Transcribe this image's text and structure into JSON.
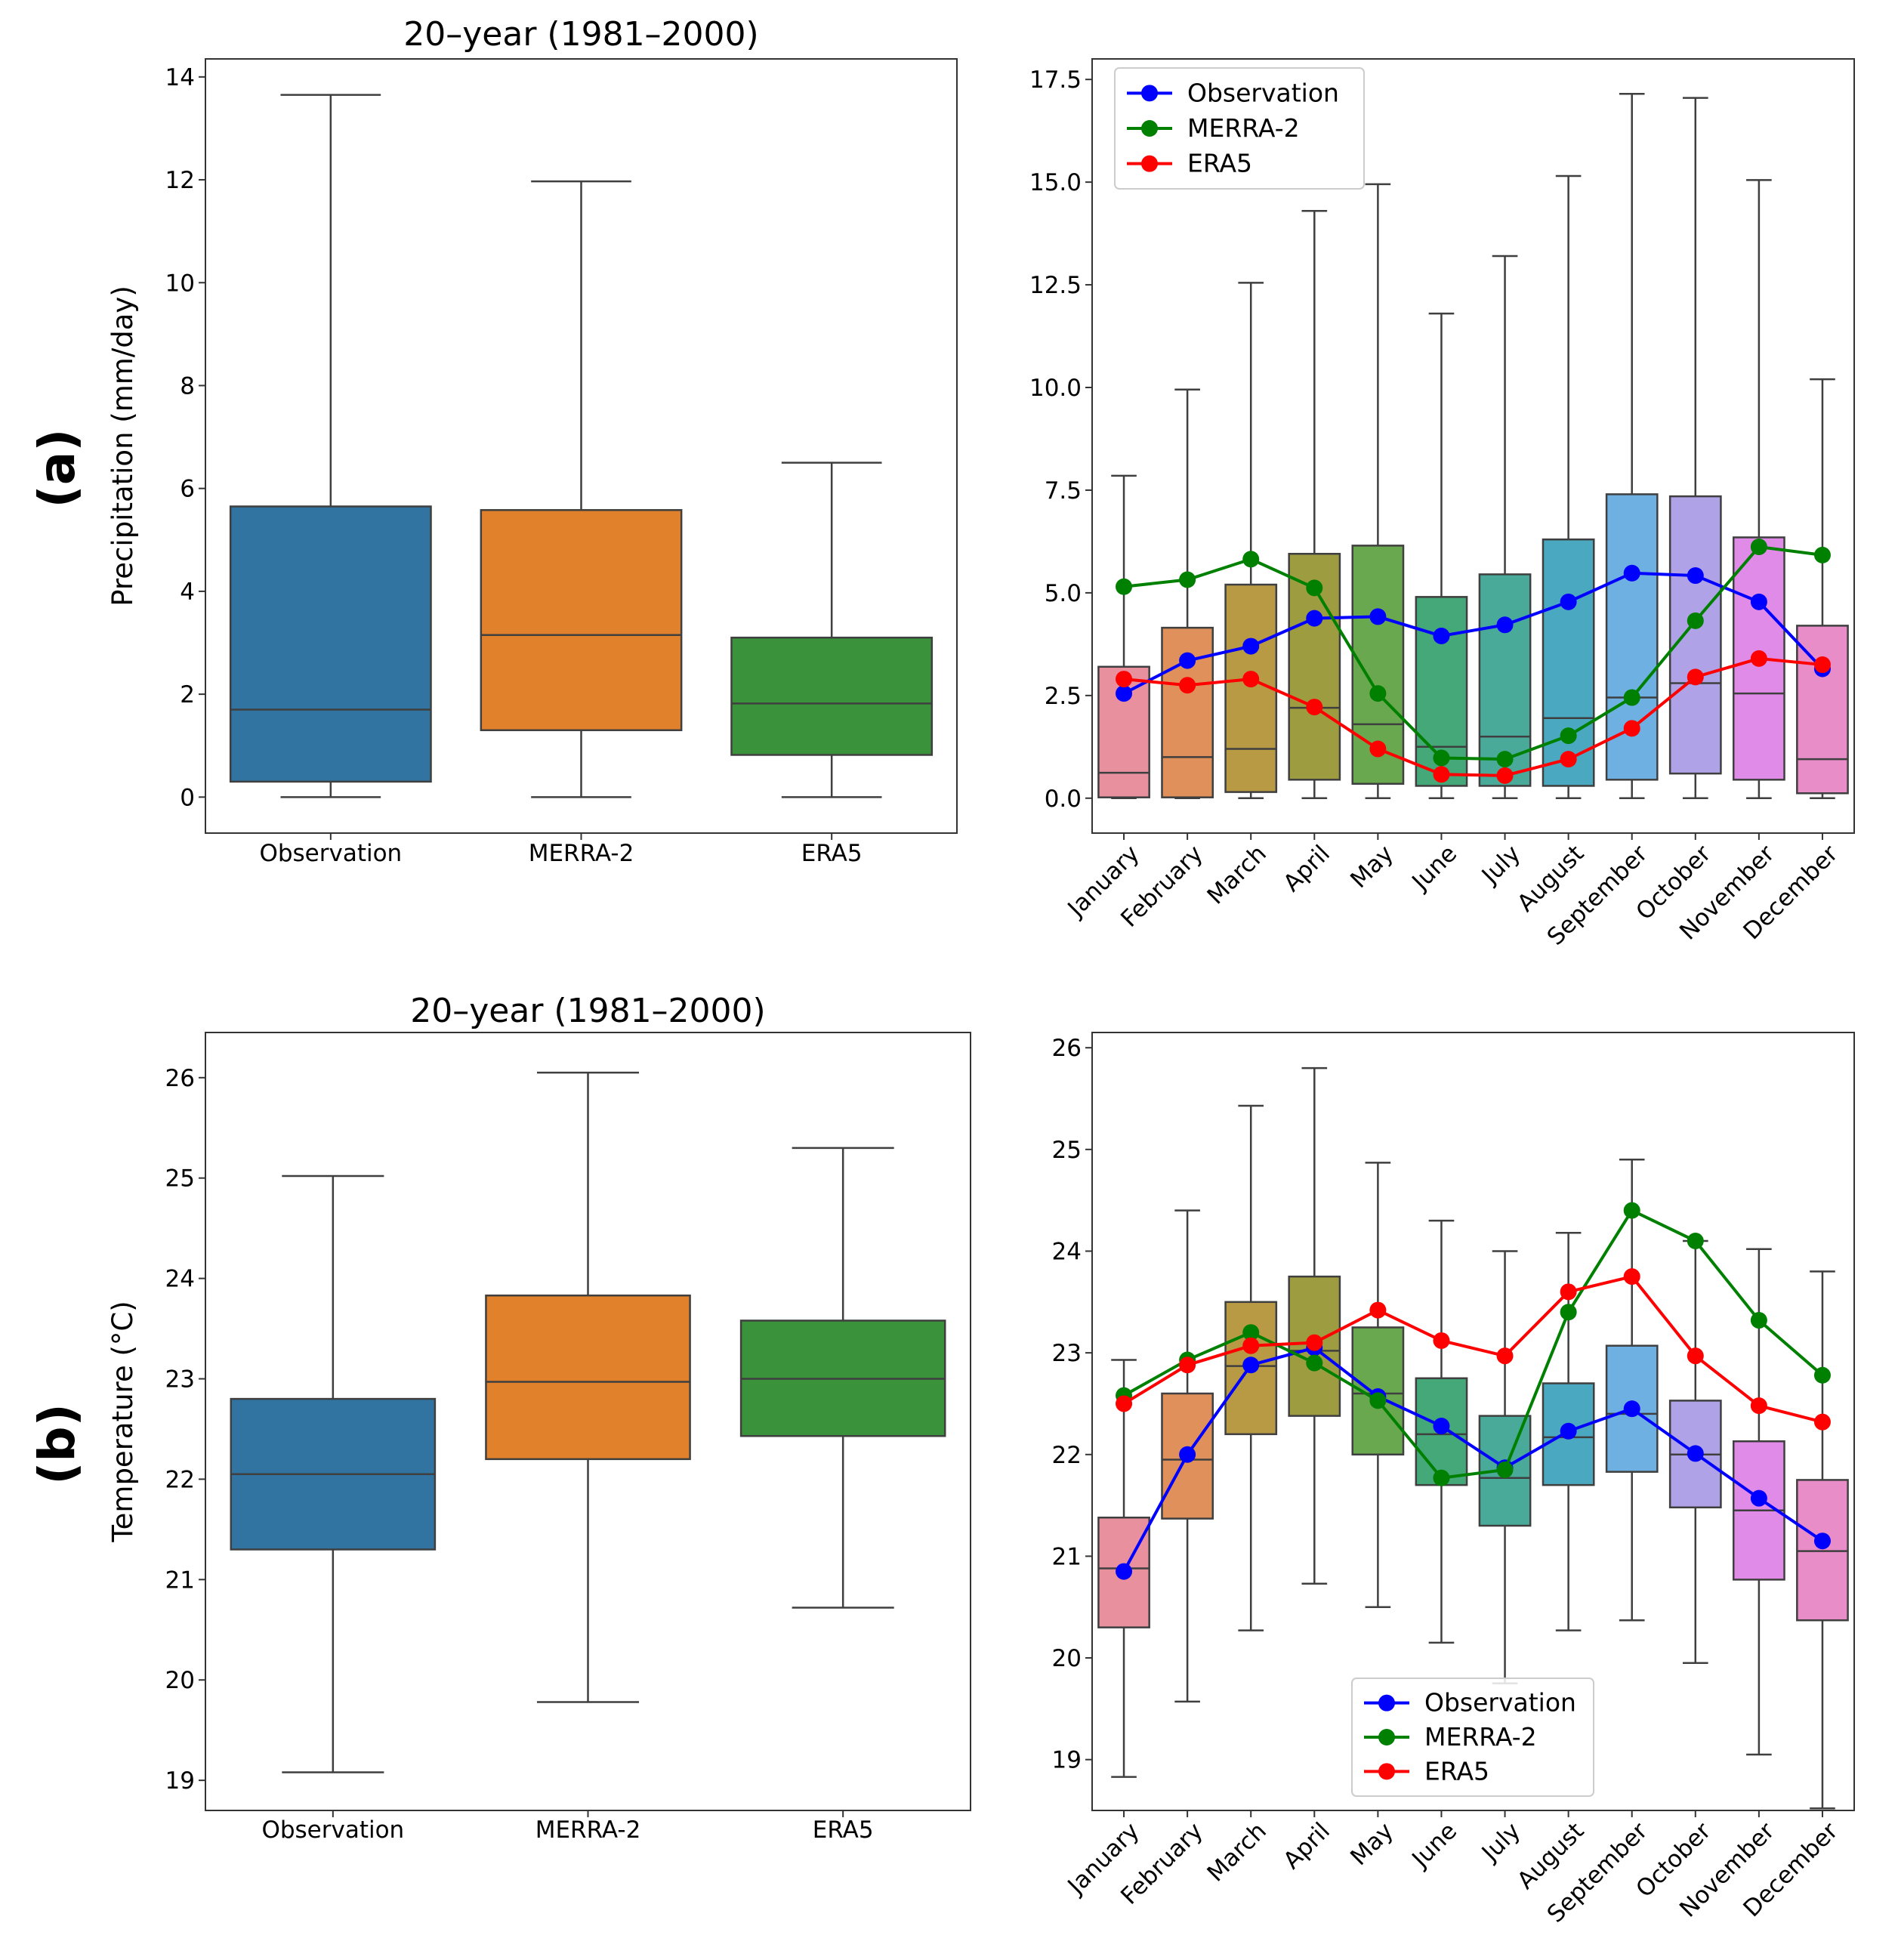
{
  "panel_labels": [
    "(a)",
    "(b)"
  ],
  "chart_data": [
    {
      "type": "box",
      "title": "20–year (1981–2000)",
      "xlabel": "",
      "ylabel": "Precipitation (mm/day)",
      "ylim": [
        -0.7,
        14.35
      ],
      "yticks": [
        0,
        2,
        4,
        6,
        8,
        10,
        12,
        14
      ],
      "yticklabels": [
        "0",
        "2",
        "4",
        "6",
        "8",
        "10",
        "12",
        "14"
      ],
      "categories": [
        "Observation",
        "MERRA-2",
        "ERA5"
      ],
      "box_colors": [
        "#3274a1",
        "#e1812c",
        "#3a923a"
      ],
      "boxes": [
        {
          "whislo": 0.0,
          "q1": 0.3,
          "median": 1.7,
          "q3": 5.65,
          "whishi": 13.65
        },
        {
          "whislo": 0.0,
          "q1": 1.3,
          "median": 3.15,
          "q3": 5.58,
          "whishi": 11.97
        },
        {
          "whislo": 0.0,
          "q1": 0.82,
          "median": 1.82,
          "q3": 3.1,
          "whishi": 6.5
        }
      ]
    },
    {
      "type": "box",
      "title": "",
      "xlabel": "",
      "ylabel": "",
      "ylim": [
        -0.85,
        18.0
      ],
      "yticks": [
        0,
        2.5,
        5,
        7.5,
        10,
        12.5,
        15,
        17.5
      ],
      "yticklabels": [
        "0.0",
        "2.5",
        "5.0",
        "7.5",
        "10.0",
        "12.5",
        "15.0",
        "17.5"
      ],
      "categories": [
        "January",
        "February",
        "March",
        "April",
        "May",
        "June",
        "July",
        "August",
        "September",
        "October",
        "November",
        "December"
      ],
      "box_colors": [
        "#e8909e",
        "#e0905a",
        "#b89a45",
        "#9d9c40",
        "#6aa84f",
        "#45a878",
        "#49aa9a",
        "#4aa9c0",
        "#6fb0e3",
        "#b0a2e6",
        "#e18be8",
        "#e88dc8"
      ],
      "boxes": [
        {
          "whislo": 0.0,
          "q1": 0.02,
          "median": 0.62,
          "q3": 3.2,
          "whishi": 7.85
        },
        {
          "whislo": 0.0,
          "q1": 0.02,
          "median": 1.0,
          "q3": 4.15,
          "whishi": 9.95
        },
        {
          "whislo": 0.0,
          "q1": 0.15,
          "median": 1.2,
          "q3": 5.2,
          "whishi": 12.55
        },
        {
          "whislo": 0.0,
          "q1": 0.45,
          "median": 2.2,
          "q3": 5.95,
          "whishi": 14.3
        },
        {
          "whislo": 0.0,
          "q1": 0.35,
          "median": 1.8,
          "q3": 6.15,
          "whishi": 14.95
        },
        {
          "whislo": 0.0,
          "q1": 0.3,
          "median": 1.25,
          "q3": 4.9,
          "whishi": 11.8
        },
        {
          "whislo": 0.0,
          "q1": 0.3,
          "median": 1.5,
          "q3": 5.45,
          "whishi": 13.2
        },
        {
          "whislo": 0.0,
          "q1": 0.3,
          "median": 1.95,
          "q3": 6.3,
          "whishi": 15.15
        },
        {
          "whislo": 0.0,
          "q1": 0.45,
          "median": 2.45,
          "q3": 7.4,
          "whishi": 17.15
        },
        {
          "whislo": 0.0,
          "q1": 0.6,
          "median": 2.8,
          "q3": 7.35,
          "whishi": 17.05
        },
        {
          "whislo": 0.0,
          "q1": 0.45,
          "median": 2.55,
          "q3": 6.35,
          "whishi": 15.05
        },
        {
          "whislo": 0.0,
          "q1": 0.12,
          "median": 0.95,
          "q3": 4.2,
          "whishi": 10.2
        }
      ],
      "series": [
        {
          "name": "Observation",
          "color": "#0000ff",
          "values": [
            2.55,
            3.35,
            3.7,
            4.38,
            4.42,
            3.95,
            4.22,
            4.78,
            5.48,
            5.42,
            4.78,
            3.15
          ]
        },
        {
          "name": "MERRA-2",
          "color": "#008000",
          "values": [
            5.15,
            5.32,
            5.82,
            5.12,
            2.55,
            0.98,
            0.95,
            1.52,
            2.45,
            4.32,
            6.12,
            5.92
          ]
        },
        {
          "name": "ERA5",
          "color": "#ff0000",
          "values": [
            2.9,
            2.75,
            2.9,
            2.22,
            1.2,
            0.58,
            0.55,
            0.95,
            1.7,
            2.95,
            3.4,
            3.25
          ]
        }
      ],
      "legend": "upper-left"
    },
    {
      "type": "box",
      "title": "20–year (1981–2000)",
      "xlabel": "",
      "ylabel": "Temperature (°C)",
      "ylim": [
        18.7,
        26.45
      ],
      "yticks": [
        19,
        20,
        21,
        22,
        23,
        24,
        25,
        26
      ],
      "yticklabels": [
        "19",
        "20",
        "21",
        "22",
        "23",
        "24",
        "25",
        "26"
      ],
      "categories": [
        "Observation",
        "MERRA-2",
        "ERA5"
      ],
      "box_colors": [
        "#3274a1",
        "#e1812c",
        "#3a923a"
      ],
      "boxes": [
        {
          "whislo": 19.08,
          "q1": 21.3,
          "median": 22.05,
          "q3": 22.8,
          "whishi": 25.02
        },
        {
          "whislo": 19.78,
          "q1": 22.2,
          "median": 22.97,
          "q3": 23.83,
          "whishi": 26.05
        },
        {
          "whislo": 20.72,
          "q1": 22.43,
          "median": 23.0,
          "q3": 23.58,
          "whishi": 25.3
        }
      ]
    },
    {
      "type": "box",
      "title": "",
      "xlabel": "",
      "ylabel": "",
      "ylim": [
        18.5,
        26.15
      ],
      "yticks": [
        19,
        20,
        21,
        22,
        23,
        24,
        25,
        26
      ],
      "yticklabels": [
        "19",
        "20",
        "21",
        "22",
        "23",
        "24",
        "25",
        "26"
      ],
      "categories": [
        "January",
        "February",
        "March",
        "April",
        "May",
        "June",
        "July",
        "August",
        "September",
        "October",
        "November",
        "December"
      ],
      "box_colors": [
        "#e8909e",
        "#e0905a",
        "#b89a45",
        "#9d9c40",
        "#6aa84f",
        "#45a878",
        "#49aa9a",
        "#4aa9c0",
        "#6fb0e3",
        "#b0a2e6",
        "#e18be8",
        "#e88dc8"
      ],
      "boxes": [
        {
          "whislo": 18.83,
          "q1": 20.3,
          "median": 20.88,
          "q3": 21.38,
          "whishi": 22.93
        },
        {
          "whislo": 19.57,
          "q1": 21.37,
          "median": 21.95,
          "q3": 22.6,
          "whishi": 24.4
        },
        {
          "whislo": 20.27,
          "q1": 22.2,
          "median": 22.87,
          "q3": 23.5,
          "whishi": 25.43
        },
        {
          "whislo": 20.73,
          "q1": 22.38,
          "median": 23.02,
          "q3": 23.75,
          "whishi": 25.8
        },
        {
          "whislo": 20.5,
          "q1": 22.0,
          "median": 22.6,
          "q3": 23.25,
          "whishi": 24.87
        },
        {
          "whislo": 20.15,
          "q1": 21.7,
          "median": 22.2,
          "q3": 22.75,
          "whishi": 24.3
        },
        {
          "whislo": 19.75,
          "q1": 21.3,
          "median": 21.77,
          "q3": 22.38,
          "whishi": 24.0
        },
        {
          "whislo": 20.27,
          "q1": 21.7,
          "median": 22.17,
          "q3": 22.7,
          "whishi": 24.18
        },
        {
          "whislo": 20.37,
          "q1": 21.83,
          "median": 22.4,
          "q3": 23.07,
          "whishi": 24.9
        },
        {
          "whislo": 19.95,
          "q1": 21.48,
          "median": 22.0,
          "q3": 22.53,
          "whishi": 24.1
        },
        {
          "whislo": 19.05,
          "q1": 20.77,
          "median": 21.45,
          "q3": 22.13,
          "whishi": 24.02
        },
        {
          "whislo": 18.52,
          "q1": 20.37,
          "median": 21.05,
          "q3": 21.75,
          "whishi": 23.8
        }
      ],
      "series": [
        {
          "name": "Observation",
          "color": "#0000ff",
          "values": [
            20.85,
            22.0,
            22.88,
            23.05,
            22.57,
            22.28,
            21.87,
            22.23,
            22.45,
            22.01,
            21.57,
            21.15
          ]
        },
        {
          "name": "MERRA-2",
          "color": "#008000",
          "values": [
            22.58,
            22.93,
            23.2,
            22.9,
            22.53,
            21.77,
            21.85,
            23.4,
            24.4,
            24.1,
            23.32,
            22.78
          ]
        },
        {
          "name": "ERA5",
          "color": "#ff0000",
          "values": [
            22.5,
            22.88,
            23.07,
            23.1,
            23.42,
            23.12,
            22.97,
            23.6,
            23.75,
            22.97,
            22.48,
            22.32
          ]
        }
      ],
      "legend": "lower-center"
    }
  ]
}
